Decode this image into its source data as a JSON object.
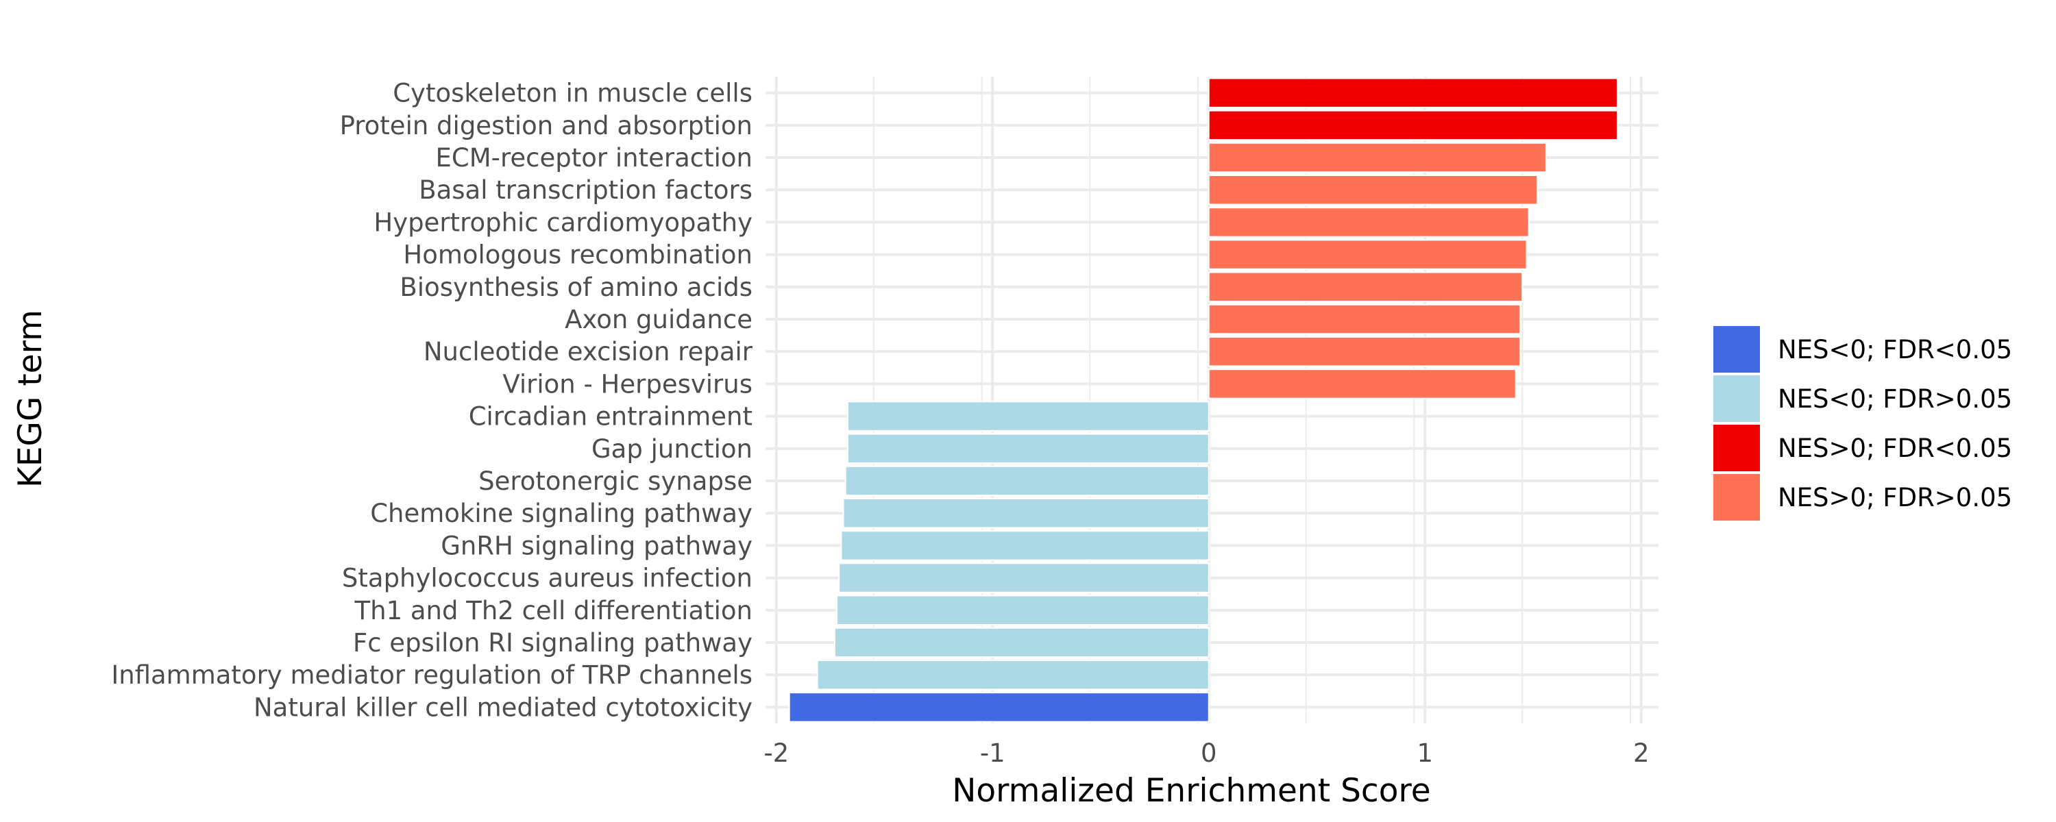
{
  "chart_data": {
    "type": "bar",
    "orientation": "horizontal",
    "xlabel": "Normalized Enrichment Score",
    "ylabel": "KEGG term",
    "xlim": [
      -2.05,
      2.08
    ],
    "xticks": [
      -2,
      -1,
      0,
      1,
      2
    ],
    "grid": true,
    "legend_position": "right",
    "legend": [
      {
        "label": "NES<0; FDR<0.05",
        "color": "#4169E1"
      },
      {
        "label": "NES<0; FDR>0.05",
        "color": "#ADD8E6"
      },
      {
        "label": "NES>0; FDR<0.05",
        "color": "#EE0000"
      },
      {
        "label": "NES>0; FDR>0.05",
        "color": "#FF7256"
      }
    ],
    "bars": [
      {
        "term": "Cytoskeleton in muscle cells",
        "value": 1.89,
        "group": 2
      },
      {
        "term": "Protein digestion and absorption",
        "value": 1.89,
        "group": 2
      },
      {
        "term": "ECM-receptor interaction",
        "value": 1.56,
        "group": 3
      },
      {
        "term": "Basal transcription factors",
        "value": 1.52,
        "group": 3
      },
      {
        "term": "Hypertrophic cardiomyopathy",
        "value": 1.48,
        "group": 3
      },
      {
        "term": "Homologous recombination",
        "value": 1.47,
        "group": 3
      },
      {
        "term": "Biosynthesis of amino acids",
        "value": 1.45,
        "group": 3
      },
      {
        "term": "Axon guidance",
        "value": 1.44,
        "group": 3
      },
      {
        "term": "Nucleotide excision repair",
        "value": 1.44,
        "group": 3
      },
      {
        "term": "Virion - Herpesvirus",
        "value": 1.42,
        "group": 3
      },
      {
        "term": "Circadian entrainment",
        "value": -1.67,
        "group": 1
      },
      {
        "term": "Gap junction",
        "value": -1.67,
        "group": 1
      },
      {
        "term": "Serotonergic synapse",
        "value": -1.68,
        "group": 1
      },
      {
        "term": "Chemokine signaling pathway",
        "value": -1.69,
        "group": 1
      },
      {
        "term": "GnRH signaling pathway",
        "value": -1.7,
        "group": 1
      },
      {
        "term": "Staphylococcus aureus infection",
        "value": -1.71,
        "group": 1
      },
      {
        "term": "Th1 and Th2 cell differentiation",
        "value": -1.72,
        "group": 1
      },
      {
        "term": "Fc epsilon RI signaling pathway",
        "value": -1.73,
        "group": 1
      },
      {
        "term": "Inflammatory mediator regulation of TRP channels",
        "value": -1.81,
        "group": 1
      },
      {
        "term": "Natural killer cell mediated cytotoxicity",
        "value": -1.94,
        "group": 0
      }
    ]
  }
}
